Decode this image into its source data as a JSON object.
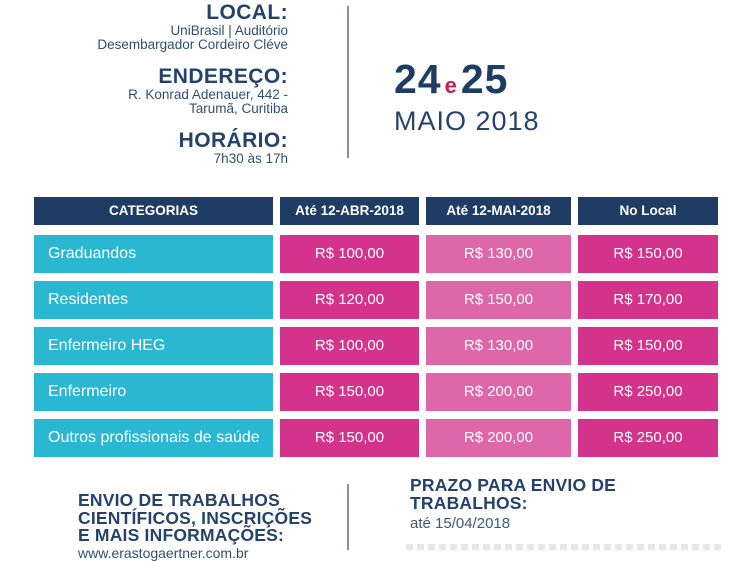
{
  "event": {
    "local": {
      "heading": "LOCAL:",
      "line1": "UniBrasil | Auditório",
      "line2": "Desembargador Cordeiro Cléve"
    },
    "endereco": {
      "heading": "ENDEREÇO:",
      "line1": "R. Konrad Adenauer, 442 -",
      "line2": "Tarumã, Curitiba"
    },
    "horario": {
      "heading": "HORÁRIO:",
      "value": "7h30 às 17h"
    },
    "date": {
      "day1": "24",
      "connector": "e",
      "day2": "25",
      "month_year": "MAIO 2018"
    }
  },
  "pricing_table": {
    "headers": [
      "CATEGORIAS",
      "Até 12-ABR-2018",
      "Até 12-MAI-2018",
      "No Local"
    ],
    "rows": [
      {
        "category": "Graduandos",
        "until_12_abr": "R$ 100,00",
        "until_12_mai": "R$ 130,00",
        "no_local": "R$ 150,00"
      },
      {
        "category": "Residentes",
        "until_12_abr": "R$ 120,00",
        "until_12_mai": "R$ 150,00",
        "no_local": "R$ 170,00"
      },
      {
        "category": "Enfermeiro HEG",
        "until_12_abr": "R$ 100,00",
        "until_12_mai": "R$ 130,00",
        "no_local": "R$ 150,00"
      },
      {
        "category": "Enfermeiro",
        "until_12_abr": "R$ 150,00",
        "until_12_mai": "R$ 200,00",
        "no_local": "R$ 250,00"
      },
      {
        "category": "Outros profissionais de saúde",
        "until_12_abr": "R$ 150,00",
        "until_12_mai": "R$ 200,00",
        "no_local": "R$ 250,00"
      }
    ]
  },
  "submissions": {
    "heading_line1": "ENVIO DE TRABALHOS",
    "heading_line2": "CIENTÍFICOS, INSCRIÇÕES",
    "heading_line3": "E MAIS INFORMAÇÕES:",
    "url": "www.erastogaertner.com.br"
  },
  "deadline": {
    "heading_line1": "PRAZO PARA ENVIO DE",
    "heading_line2": "TRABALHOS:",
    "value": "até 15/04/2018"
  },
  "colors": {
    "navy": "#1e3c64",
    "cyan": "#29b7d2",
    "magenta_dark": "#d4338b",
    "magenta_light": "#dd67a8",
    "accent_red": "#bf2150",
    "divider_gray": "#8793a3"
  }
}
